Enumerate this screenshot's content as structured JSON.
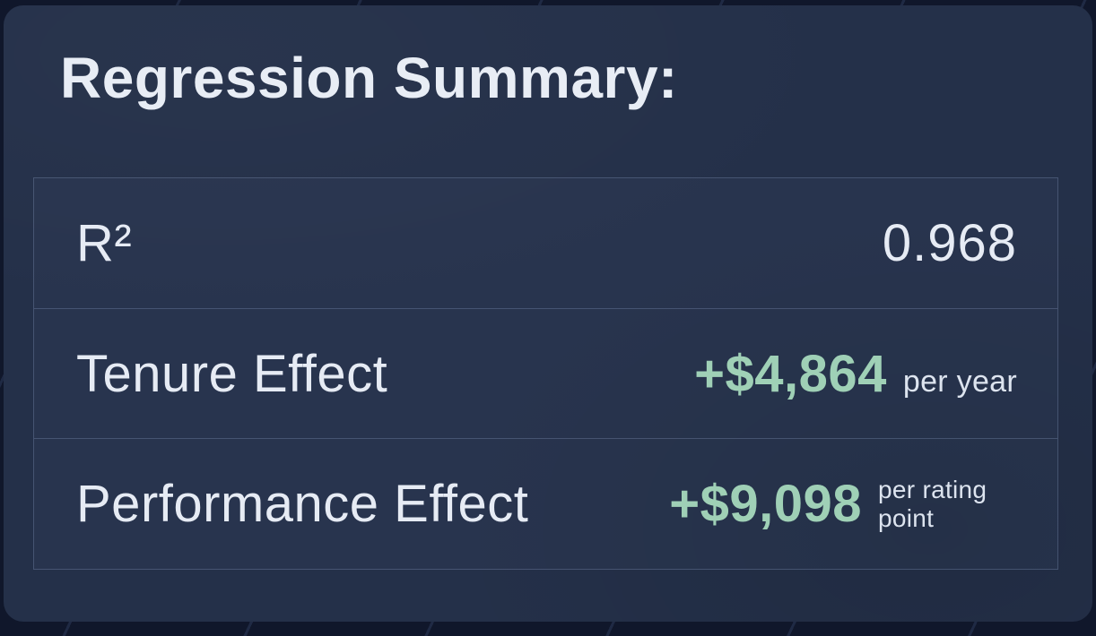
{
  "title": "Regression Summary:",
  "colors": {
    "outer_background": "#10172b",
    "card_background": "#243049",
    "row_background": "#283552",
    "border": "#54627f",
    "text_primary": "#e8edf5",
    "accent_green": "#9fd0b6"
  },
  "table": {
    "rows": [
      {
        "label": "R²",
        "value": "0.968"
      },
      {
        "label": "Tenure Effect",
        "value": "+$4,864",
        "unit": "per year"
      },
      {
        "label": "Performance Effect",
        "value": "+$9,098",
        "unit": "per rating point"
      }
    ]
  }
}
